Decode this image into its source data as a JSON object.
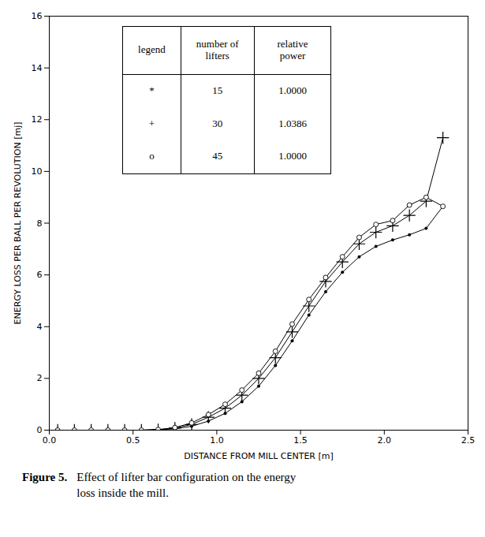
{
  "chart_data": {
    "type": "line",
    "xlabel": "DISTANCE FROM MILL CENTER [m]",
    "ylabel": "ENERGY LOSS PER BALL PER REVOLUTION [mj]",
    "xlim": [
      0,
      2.5
    ],
    "ylim": [
      0,
      16
    ],
    "xticks": [
      {
        "value": 0,
        "label": "0.0"
      },
      0.5,
      {
        "value": 1.0,
        "label": "1.0"
      },
      1.5,
      {
        "value": 2.0,
        "label": "2.0"
      },
      2.5
    ],
    "yticks": [
      0,
      2,
      4,
      6,
      8,
      10,
      12,
      14,
      16
    ],
    "grid": false,
    "series": [
      {
        "marker": "dot",
        "line_style": "solid",
        "color": "#000000",
        "x": [
          0.05,
          0.15,
          0.25,
          0.35,
          0.45,
          0.55,
          0.65,
          0.75,
          0.85,
          0.95,
          1.05,
          1.15,
          1.25,
          1.35,
          1.45,
          1.55,
          1.65,
          1.75,
          1.85,
          1.95,
          2.05,
          2.15,
          2.25,
          2.35
        ],
        "values": [
          0.0,
          0.0,
          0.0,
          0.0,
          0.0,
          0.0,
          0.02,
          0.05,
          0.15,
          0.35,
          0.65,
          1.1,
          1.7,
          2.5,
          3.45,
          4.45,
          5.35,
          6.1,
          6.7,
          7.1,
          7.35,
          7.55,
          7.8,
          8.65
        ]
      },
      {
        "marker": "plus",
        "line_style": "solid",
        "color": "#000000",
        "x": [
          0.05,
          0.15,
          0.25,
          0.35,
          0.45,
          0.55,
          0.65,
          0.75,
          0.85,
          0.95,
          1.05,
          1.15,
          1.25,
          1.35,
          1.45,
          1.55,
          1.65,
          1.75,
          1.85,
          1.95,
          2.05,
          2.15,
          2.25,
          2.35
        ],
        "values": [
          0.0,
          0.0,
          0.0,
          0.0,
          0.0,
          0.0,
          0.02,
          0.08,
          0.22,
          0.5,
          0.85,
          1.35,
          2.0,
          2.8,
          3.8,
          4.8,
          5.75,
          6.5,
          7.2,
          7.65,
          7.9,
          8.3,
          8.85,
          11.3
        ]
      },
      {
        "marker": "circle",
        "line_style": "solid",
        "color": "#000000",
        "x": [
          0.05,
          0.15,
          0.25,
          0.35,
          0.45,
          0.55,
          0.65,
          0.75,
          0.85,
          0.95,
          1.05,
          1.15,
          1.25,
          1.35,
          1.45,
          1.55,
          1.65,
          1.75,
          1.85,
          1.95,
          2.05,
          2.15,
          2.25,
          2.35
        ],
        "values": [
          0.0,
          0.0,
          0.0,
          0.0,
          0.0,
          0.0,
          0.02,
          0.1,
          0.28,
          0.6,
          1.0,
          1.55,
          2.2,
          3.05,
          4.1,
          5.05,
          5.9,
          6.7,
          7.45,
          7.95,
          8.1,
          8.7,
          9.0,
          8.65
        ]
      }
    ],
    "table": {
      "headers": [
        "legend",
        "number of\nlifters",
        "relative\npower"
      ],
      "rows": [
        [
          "*",
          "15",
          "1.0000"
        ],
        [
          "+",
          "30",
          "1.0386"
        ],
        [
          "o",
          "45",
          "1.0000"
        ]
      ]
    },
    "caption": {
      "bold": "Figure 5.",
      "text": "Effect of lifter bar configuration on the energy\nloss inside the mill."
    }
  }
}
